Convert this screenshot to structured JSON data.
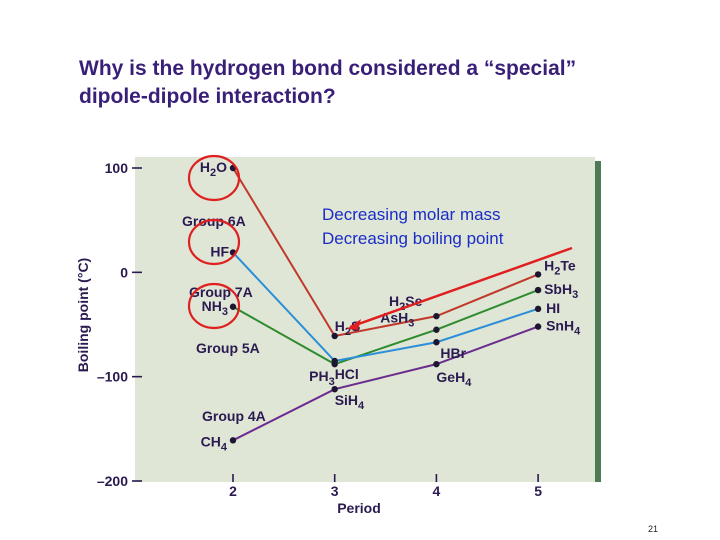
{
  "slide": {
    "question_line1": "Why is the hydrogen bond considered a “special”",
    "question_line2": "dipole-dipole interaction?",
    "annotation_line1": "Decreasing molar mass",
    "annotation_line2": "Decreasing boiling point",
    "slide_number": "21",
    "colors": {
      "title": "#3a1f78",
      "annotation": "#1a2cc8",
      "highlight": "#e02020",
      "plot_bg": "#dfe6d6"
    }
  },
  "chart_data": {
    "type": "line",
    "xlabel": "Period",
    "ylabel": "Boiling point (°C)",
    "x": [
      2,
      3,
      4,
      5
    ],
    "xlim": [
      2,
      5
    ],
    "ylim": [
      -200,
      100
    ],
    "xticks": [
      "2",
      "3",
      "4",
      "5"
    ],
    "yticks": [
      {
        "value": 100,
        "label": "100"
      },
      {
        "value": 0,
        "label": "0"
      },
      {
        "value": -100,
        "label": "–100"
      },
      {
        "value": -200,
        "label": "–200"
      }
    ],
    "grid": false,
    "series": [
      {
        "name": "Group 6A",
        "color": "#c0392b",
        "values": [
          100,
          -61,
          -42,
          -2
        ],
        "labels": [
          {
            "base": "H",
            "sub": "2",
            "rest": "O"
          },
          {
            "base": "H",
            "sub": "2",
            "rest": "S"
          },
          {
            "base": "H",
            "sub": "2",
            "rest": "Se"
          },
          {
            "base": "H",
            "sub": "2",
            "rest": "Te"
          }
        ]
      },
      {
        "name": "Group 7A",
        "color": "#2a8fd8",
        "values": [
          19,
          -85,
          -67,
          -35
        ],
        "labels": [
          {
            "base": "HF",
            "sub": "",
            "rest": ""
          },
          {
            "base": "HCl",
            "sub": "",
            "rest": ""
          },
          {
            "base": "HBr",
            "sub": "",
            "rest": ""
          },
          {
            "base": "HI",
            "sub": "",
            "rest": ""
          }
        ]
      },
      {
        "name": "Group 5A",
        "color": "#2e8b2e",
        "values": [
          -33,
          -88,
          -55,
          -17
        ],
        "labels": [
          {
            "base": "NH",
            "sub": "3",
            "rest": ""
          },
          {
            "base": "PH",
            "sub": "3",
            "rest": ""
          },
          {
            "base": "AsH",
            "sub": "3",
            "rest": ""
          },
          {
            "base": "SbH",
            "sub": "3",
            "rest": ""
          }
        ]
      },
      {
        "name": "Group 4A",
        "color": "#6a2c8e",
        "values": [
          -161,
          -112,
          -88,
          -52
        ],
        "labels": [
          {
            "base": "CH",
            "sub": "4",
            "rest": ""
          },
          {
            "base": "SiH",
            "sub": "4",
            "rest": ""
          },
          {
            "base": "GeH",
            "sub": "4",
            "rest": ""
          },
          {
            "base": "SnH",
            "sub": "4",
            "rest": ""
          }
        ]
      }
    ]
  }
}
